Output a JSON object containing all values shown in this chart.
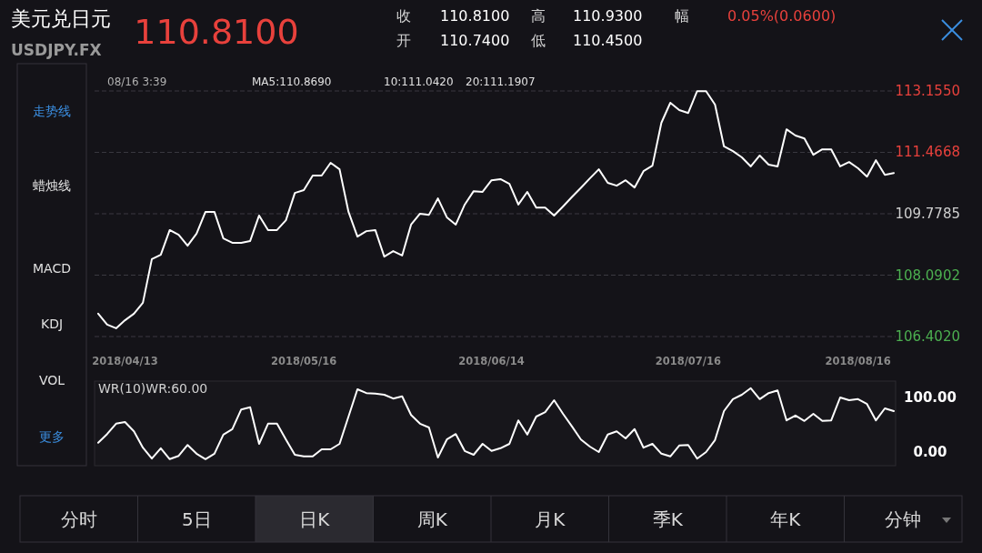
{
  "chart_data": [
    {
      "type": "other",
      "title": "美元兑日元",
      "subtitle": "USDJPY.FX",
      "annotations": [
        "110.8100",
        "收",
        "110.8100",
        "高",
        "110.9300",
        "幅",
        "0.05%(0.0600)",
        "开",
        "110.7400",
        "低",
        "110.4500",
        "走势线",
        "蜡烛线",
        "MACD",
        "KDJ",
        "VOL",
        "更多",
        "分时",
        "5日",
        "日K",
        "周K",
        "月K",
        "季K",
        "年K",
        "分钟"
      ]
    },
    {
      "type": "line",
      "color": "#ffffff",
      "grid": "y",
      "categories": [
        null,
        null,
        null,
        "2018/04/13",
        null,
        null,
        null,
        null,
        null,
        null,
        null,
        null,
        null,
        null,
        null,
        null,
        null,
        null,
        null,
        null,
        null,
        null,
        null,
        "2018/05/16",
        null,
        null,
        null,
        null,
        null,
        null,
        null,
        null,
        null,
        null,
        null,
        null,
        null,
        null,
        null,
        null,
        null,
        null,
        null,
        null,
        "2018/06/14",
        null,
        null,
        null,
        null,
        null,
        null,
        null,
        null,
        null,
        null,
        null,
        null,
        null,
        null,
        null,
        null,
        null,
        null,
        null,
        null,
        null,
        "2018/07/16",
        null,
        null,
        null,
        null,
        null,
        null,
        null,
        null,
        null,
        null,
        null,
        null,
        null,
        null,
        null,
        null,
        null,
        null,
        "2018/08/16",
        null,
        null,
        null,
        null
      ],
      "values": [
        107.03,
        106.73,
        106.63,
        106.85,
        107.03,
        107.33,
        108.53,
        108.65,
        109.33,
        109.2,
        108.9,
        109.23,
        109.83,
        109.83,
        109.1,
        108.98,
        108.98,
        109.03,
        109.73,
        109.33,
        109.33,
        109.6,
        110.35,
        110.43,
        110.83,
        110.83,
        111.18,
        111.0,
        109.83,
        109.15,
        109.3,
        109.33,
        108.6,
        108.75,
        108.63,
        109.48,
        109.78,
        109.75,
        110.2,
        109.68,
        109.48,
        110.03,
        110.4,
        110.38,
        110.7,
        110.73,
        110.6,
        110.03,
        110.38,
        109.95,
        109.95,
        109.73,
        109.98,
        110.24,
        110.49,
        110.75,
        111.0,
        110.63,
        110.55,
        110.7,
        110.5,
        110.95,
        111.1,
        112.28,
        112.83,
        112.63,
        112.55,
        113.15,
        113.15,
        112.78,
        111.63,
        111.5,
        111.33,
        111.08,
        111.38,
        111.13,
        111.08,
        112.1,
        111.93,
        111.85,
        111.4,
        111.55,
        111.55,
        111.08,
        111.2,
        111.03,
        110.8,
        111.25,
        110.85,
        110.9
      ],
      "ylim": [
        106.402,
        113.155
      ],
      "yticks": [
        {
          "value": 106.402,
          "label": "106.4020"
        },
        {
          "value": 108.0902,
          "label": "108.0902"
        },
        {
          "value": 109.7785,
          "label": "109.7785"
        },
        {
          "value": 111.4668,
          "label": "111.4668"
        },
        {
          "value": 113.155,
          "label": "113.1550"
        }
      ],
      "annotations": [
        "08/16 3:39",
        "MA5:110.8690",
        "10:111.0420",
        "20:111.1907"
      ]
    },
    {
      "type": "line",
      "color": "#ffffff",
      "tick_labels": "y",
      "categories": [
        null,
        null,
        null,
        "2018/04/13",
        null,
        null,
        null,
        null,
        null,
        null,
        null,
        null,
        null,
        null,
        null,
        null,
        null,
        null,
        null,
        null,
        null,
        null,
        null,
        "2018/05/16",
        null,
        null,
        null,
        null,
        null,
        null,
        null,
        null,
        null,
        null,
        null,
        null,
        null,
        null,
        null,
        null,
        null,
        null,
        null,
        null,
        "2018/06/14",
        null,
        null,
        null,
        null,
        null,
        null,
        null,
        null,
        null,
        null,
        null,
        null,
        null,
        null,
        null,
        null,
        null,
        null,
        null,
        null,
        null,
        "2018/07/16",
        null,
        null,
        null,
        null,
        null,
        null,
        null,
        null,
        null,
        null,
        null,
        null,
        null,
        null,
        null,
        null,
        null,
        null,
        "2018/08/16",
        null,
        null,
        null,
        null
      ],
      "values": [
        17,
        33,
        52,
        55,
        38,
        8,
        -12,
        7,
        -13,
        -7,
        13,
        -3,
        -13,
        -3,
        32,
        42,
        78,
        82,
        15,
        52,
        52,
        23,
        -5,
        -8,
        -8,
        5,
        5,
        15,
        65,
        115,
        108,
        107,
        105,
        98,
        102,
        68,
        52,
        45,
        -10,
        23,
        33,
        2,
        -5,
        15,
        2,
        7,
        15,
        58,
        32,
        65,
        73,
        95,
        70,
        47,
        23,
        10,
        0,
        32,
        38,
        25,
        42,
        8,
        15,
        -3,
        -8,
        12,
        13,
        -12,
        0,
        22,
        75,
        97,
        105,
        117,
        97,
        108,
        113,
        58,
        67,
        57,
        70,
        57,
        58,
        100,
        95,
        97,
        88,
        58,
        80,
        75
      ],
      "ylim": [
        -25,
        130
      ],
      "yticks": [
        {
          "value": 100,
          "label": "100.00"
        },
        {
          "value": 0,
          "label": "0.00"
        }
      ],
      "annotations": [
        "WR(10)WR:60.00"
      ]
    }
  ]
}
